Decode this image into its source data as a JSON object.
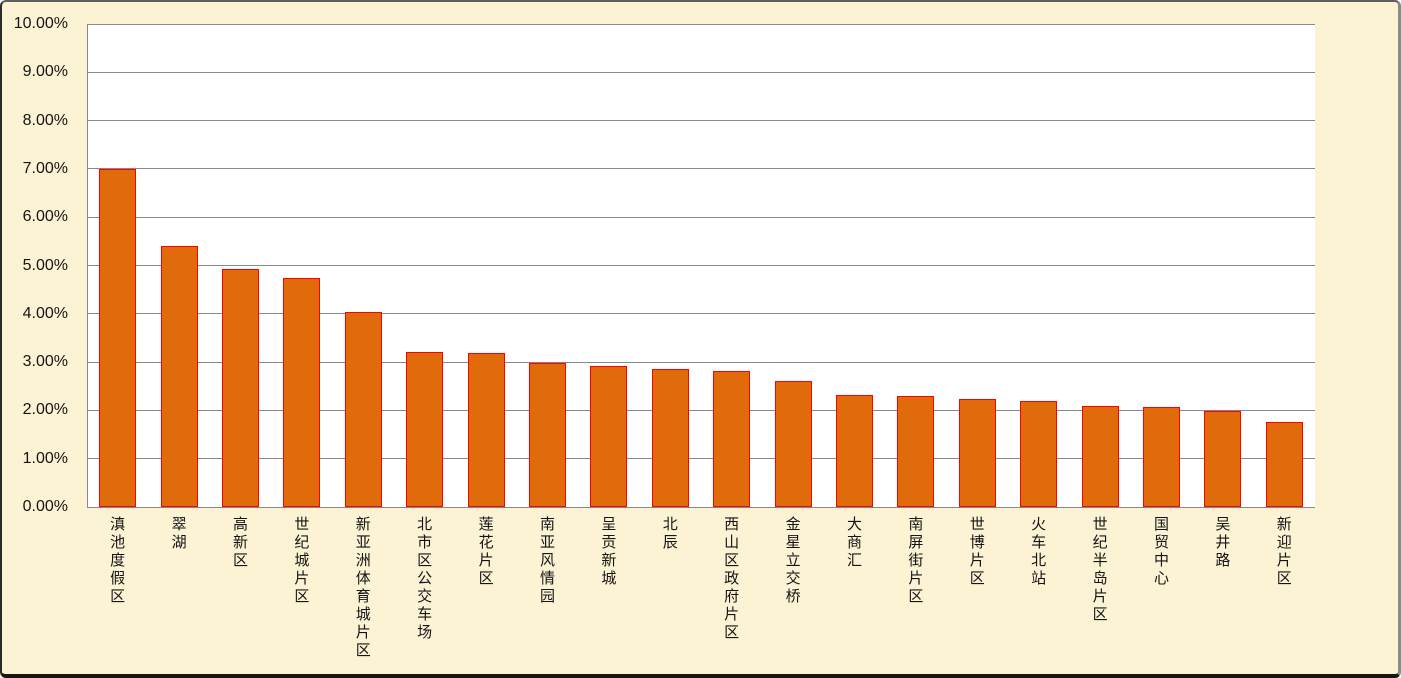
{
  "chart_data": {
    "type": "bar",
    "title": "",
    "xlabel": "",
    "ylabel": "",
    "categories": [
      "滇池度假区",
      "翠湖",
      "高新区",
      "世纪城片区",
      "新亚洲体育城片区",
      "北市区公交车场",
      "莲花片区",
      "南亚风情园",
      "呈贡新城",
      "北辰",
      "西山区政府片区",
      "金星立交桥",
      "大商汇",
      "南屏街片区",
      "世博片区",
      "火车北站",
      "世纪半岛片区",
      "国贸中心",
      "吴井路",
      "新迎片区"
    ],
    "values": [
      7.0,
      5.4,
      4.93,
      4.74,
      4.03,
      3.21,
      3.18,
      2.99,
      2.92,
      2.85,
      2.81,
      2.6,
      2.31,
      2.3,
      2.23,
      2.19,
      2.09,
      2.08,
      1.99,
      1.76
    ],
    "value_unit": "percent",
    "ylim": [
      0,
      10
    ],
    "y_tick_step": 1,
    "y_tick_labels": [
      "0.00%",
      "1.00%",
      "2.00%",
      "3.00%",
      "4.00%",
      "5.00%",
      "6.00%",
      "7.00%",
      "8.00%",
      "9.00%",
      "10.00%"
    ],
    "grid": true,
    "legend": false,
    "colors": {
      "background": "#FCF3D5",
      "plot_background": "#FFFFFF",
      "bar_fill": "#E16A0A",
      "bar_border": "#FE0000",
      "gridline": "#898989",
      "text": "#141414"
    }
  }
}
